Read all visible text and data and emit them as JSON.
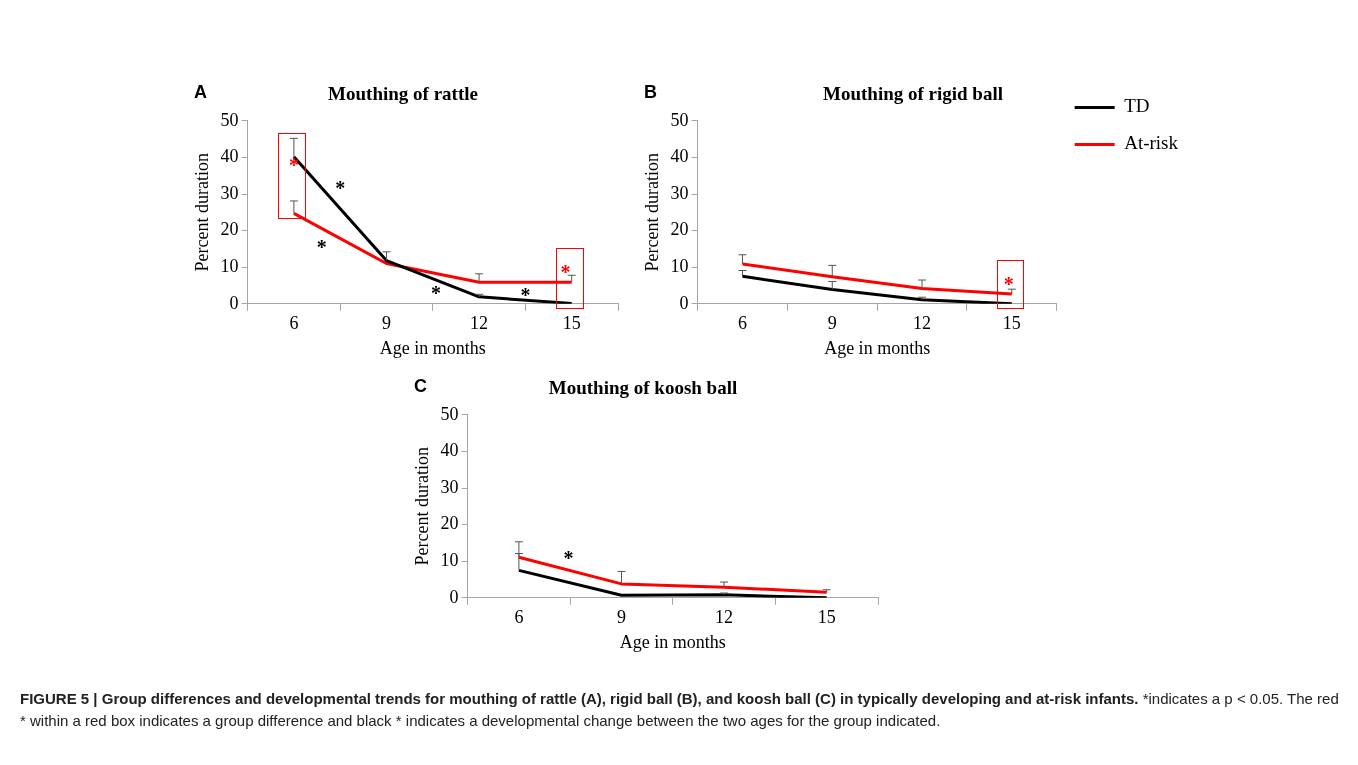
{
  "chart_data": [
    {
      "type": "line",
      "title": "Mouthing of rattle",
      "xlabel": "Age in months",
      "ylabel": "Percent duration",
      "x": [
        6,
        9,
        12,
        15
      ],
      "xlim": [
        4.5,
        16.5
      ],
      "xticks": [
        {
          "value": 4.5,
          "label": null
        },
        6,
        {
          "value": 7.5,
          "label": null
        },
        9,
        {
          "value": 10.5,
          "label": null
        },
        12,
        {
          "value": 13.5,
          "label": null
        },
        15,
        {
          "value": 16.5,
          "label": null
        }
      ],
      "ylim": [
        0,
        50
      ],
      "yticks": [
        0,
        10,
        20,
        30,
        40,
        50
      ],
      "grid": false,
      "legend": false,
      "series": [
        {
          "color": "#000000",
          "values": [
            40.2,
            11.8,
            1.9,
            0.1
          ],
          "errors": [
            [
              40.2,
              45.2
            ],
            [
              11.8,
              14.2
            ],
            [
              1.9,
              2.6
            ],
            null
          ]
        },
        {
          "color": "#ff0000",
          "values": [
            24.7,
            11.0,
            5.9,
            5.9
          ],
          "errors": [
            [
              24.7,
              28.1
            ],
            null,
            [
              5.9,
              8.2
            ],
            [
              5.9,
              7.8
            ]
          ]
        }
      ],
      "annotations": [
        "A",
        "*",
        "*",
        "*",
        "*",
        "*",
        "*"
      ]
    },
    {
      "type": "line",
      "title": "Mouthing of rigid ball",
      "xlabel": "Age in months",
      "ylabel": "Percent duration",
      "x": [
        6,
        9,
        12,
        15
      ],
      "xlim": [
        4.5,
        16.5
      ],
      "xticks": [
        {
          "value": 4.5,
          "label": null
        },
        6,
        {
          "value": 7.5,
          "label": null
        },
        9,
        {
          "value": 10.5,
          "label": null
        },
        12,
        {
          "value": 13.5,
          "label": null
        },
        15,
        {
          "value": 16.5,
          "label": null
        }
      ],
      "ylim": [
        0,
        50
      ],
      "yticks": [
        0,
        10,
        20,
        30,
        40,
        50
      ],
      "grid": false,
      "legend": "top right",
      "series": [
        {
          "name": "TD",
          "color": "#000000",
          "values": [
            7.5,
            3.9,
            1.1,
            0.0
          ],
          "errors": [
            [
              7.5,
              9.1
            ],
            [
              3.9,
              6.1
            ],
            [
              1.1,
              1.8
            ],
            null
          ]
        },
        {
          "name": "At-risk",
          "color": "#ff0000",
          "values": [
            10.9,
            7.4,
            4.2,
            2.7
          ],
          "errors": [
            [
              10.9,
              13.4
            ],
            [
              7.4,
              10.5
            ],
            [
              4.2,
              6.5
            ],
            [
              2.7,
              4.0
            ]
          ]
        }
      ],
      "annotations": [
        "B",
        "*"
      ]
    },
    {
      "type": "line",
      "title": "Mouthing of koosh ball",
      "xlabel": "Age in months",
      "ylabel": "Percent duration",
      "x": [
        6,
        9,
        12,
        15
      ],
      "xlim": [
        4.5,
        16.5
      ],
      "xticks": [
        {
          "value": 4.5,
          "label": null
        },
        6,
        {
          "value": 7.5,
          "label": null
        },
        9,
        {
          "value": 10.5,
          "label": null
        },
        12,
        {
          "value": 13.5,
          "label": null
        },
        15,
        {
          "value": 16.5,
          "label": null
        }
      ],
      "ylim": [
        0,
        50
      ],
      "yticks": [
        0,
        10,
        20,
        30,
        40,
        50
      ],
      "grid": false,
      "legend": false,
      "series": [
        {
          "color": "#000000",
          "values": [
            7.5,
            0.7,
            0.8,
            0.0
          ],
          "errors": [
            [
              7.5,
              12.1
            ],
            null,
            [
              0.8,
              1.3
            ],
            null
          ]
        },
        {
          "color": "#ff0000",
          "values": [
            11.1,
            3.8,
            2.9,
            1.5
          ],
          "errors": [
            [
              11.1,
              15.3
            ],
            [
              3.8,
              7.2
            ],
            [
              2.9,
              4.3
            ],
            [
              1.5,
              2.2
            ]
          ]
        }
      ],
      "annotations": [
        "C",
        "*"
      ]
    },
    {
      "type": "other",
      "title": "FIGURE 5 | Group differences and developmental trends for mouthing of rattle (A), rigid ball (B), and koosh ball (C) in typically developing and at-risk infants.",
      "annotations": [
        "*indicates a p < 0.05. The red * within a red box indicates a group difference and black * indicates a developmental change between the two ages for the group indicated."
      ]
    }
  ]
}
